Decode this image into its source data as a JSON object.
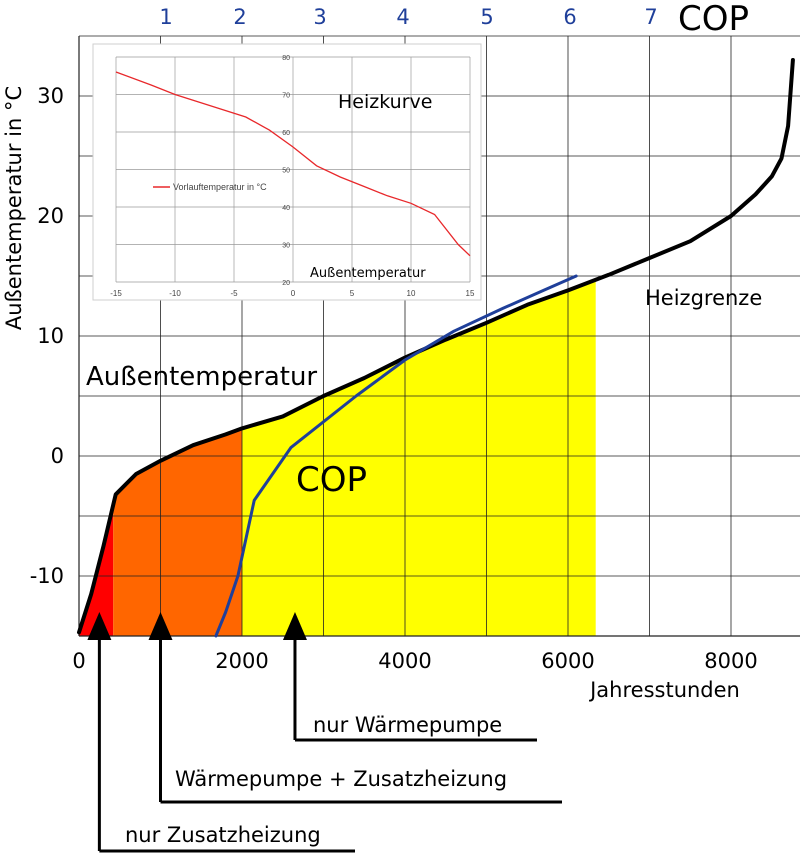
{
  "chart_data": [
    {
      "type": "line",
      "xlabel": "Jahresstunden",
      "ylabel": "Außentemperatur in °C",
      "xlim": [
        0,
        8760
      ],
      "ylim": [
        -15,
        35
      ],
      "x_ticks": [
        0,
        2000,
        4000,
        6000,
        8000
      ],
      "x_tick_labels": [
        "0",
        "2000",
        "4000",
        "6000",
        "8000"
      ],
      "y_ticks": [
        -10,
        0,
        10,
        20,
        30
      ],
      "y_tick_labels": [
        "-10",
        "0",
        "10",
        "20",
        "30"
      ],
      "grid": true,
      "top_axis": {
        "label": "COP",
        "values": [
          1,
          2,
          3,
          4,
          5,
          6,
          7
        ],
        "tick_labels": [
          "1",
          "2",
          "3",
          "4",
          "5",
          "6",
          "7"
        ]
      },
      "series": [
        {
          "name": "Außentemperatur",
          "color": "#000000",
          "x": [
            0,
            150,
            300,
            450,
            700,
            1000,
            1400,
            1800,
            2000,
            2500,
            3000,
            3500,
            4000,
            4500,
            5000,
            5500,
            6000,
            6500,
            7000,
            7500,
            8000,
            8300,
            8500,
            8620,
            8700,
            8760
          ],
          "y": [
            -14.7,
            -11.5,
            -7.5,
            -3.2,
            -1.5,
            -0.4,
            0.9,
            1.8,
            2.3,
            3.3,
            5.0,
            6.5,
            8.2,
            9.7,
            11.1,
            12.6,
            13.8,
            15.1,
            16.5,
            17.9,
            20.0,
            21.8,
            23.3,
            24.8,
            27.5,
            33.0
          ]
        },
        {
          "name": "COP",
          "color": "#1f3f9a",
          "x": [
            1680,
            1800,
            1950,
            2150,
            2600,
            3400,
            4000,
            4600,
            5200,
            5700,
            6100
          ],
          "y": [
            -15.0,
            -13.0,
            -10.0,
            -3.7,
            0.7,
            5.0,
            8.0,
            10.4,
            12.3,
            13.8,
            15.0
          ]
        }
      ],
      "regions": [
        {
          "label": "nur Zusatzheizung",
          "x_from": 0,
          "x_to": 420,
          "color": "#ff0000"
        },
        {
          "label": "Wärmepumpe + Zusatzheizung",
          "x_from": 420,
          "x_to": 2000,
          "color": "#ff6600"
        },
        {
          "label": "nur Wärmepumpe",
          "x_from": 2000,
          "x_to": 6340,
          "color": "#ffff00"
        }
      ],
      "annotations": [
        "Außentemperatur",
        "COP",
        "Heizgrenze"
      ],
      "arrow_points": [
        {
          "label": "nur Wärmepumpe",
          "x": 2650
        },
        {
          "label": "Wärmepumpe + Zusatzheizung",
          "x": 1000
        },
        {
          "label": "nur Zusatzheizung",
          "x": 250
        }
      ]
    },
    {
      "type": "line",
      "title": "Heizkurve",
      "xlabel": "Außentemperatur",
      "xlim": [
        -15,
        15
      ],
      "ylim": [
        20,
        80
      ],
      "x_ticks": [
        -15,
        -10,
        -5,
        0,
        5,
        10,
        15
      ],
      "x_tick_labels": [
        "-15",
        "-10",
        "-5",
        "0",
        "5",
        "10",
        "15"
      ],
      "y_ticks": [
        20,
        30,
        40,
        50,
        60,
        70,
        80
      ],
      "y_tick_labels": [
        "20",
        "30",
        "40",
        "50",
        "60",
        "70",
        "80"
      ],
      "grid": true,
      "legend": "left",
      "series": [
        {
          "name": "Vorlauftemperatur in °C",
          "color": "#e8282b",
          "x": [
            -15,
            -12,
            -10,
            -8,
            -6,
            -4,
            -2,
            0,
            2,
            4,
            6,
            8,
            10,
            12,
            14,
            15
          ],
          "y": [
            76,
            72.5,
            70,
            68,
            66,
            64,
            60.5,
            56,
            51,
            48,
            45.5,
            43,
            41,
            38,
            30,
            27
          ]
        }
      ]
    }
  ]
}
